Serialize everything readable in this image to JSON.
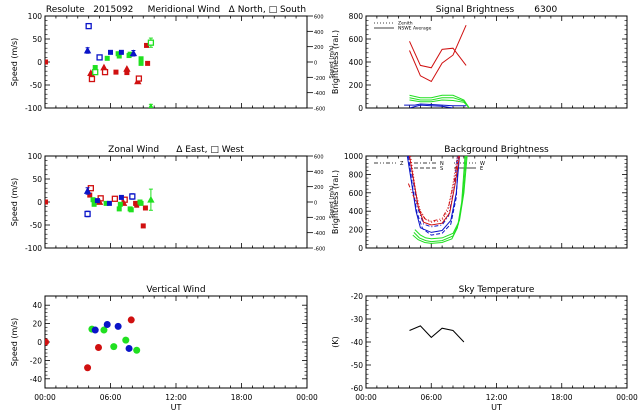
{
  "colors": {
    "red": "#d01010",
    "green": "#20e020",
    "blue": "#0a14c8",
    "axis": "#000000",
    "bg": "#ffffff"
  },
  "xaxis_common": {
    "label": "UT",
    "ticks": [
      "00:00",
      "06:00",
      "12:00",
      "18:00",
      "00:00"
    ],
    "range_hours": [
      0,
      24
    ]
  },
  "chart_data": [
    {
      "id": "meridional",
      "type": "scatter",
      "title": "Resolute   2015092     Meridional Wind   Δ North, □ South",
      "ylabel": "Speed (m/s)",
      "ylabel_right": "Speed (m/s)",
      "ylim": [
        -100,
        100
      ],
      "yticks": [
        -100,
        -50,
        0,
        50,
        100
      ],
      "ylim_right": [
        -600,
        600
      ],
      "yticks_right": [
        "600",
        "400",
        "200",
        "0",
        "-200",
        "-400",
        "-600"
      ],
      "show_xlabels": false,
      "series": [
        {
          "name": "red",
          "color": "red",
          "points": [
            {
              "t": 0.05,
              "v": 0,
              "m": "fill"
            },
            {
              "t": 4.2,
              "v": -24,
              "m": "tri"
            },
            {
              "t": 4.3,
              "v": -37,
              "m": "sq"
            },
            {
              "t": 5.4,
              "v": -12,
              "m": "tri"
            },
            {
              "t": 5.5,
              "v": -22,
              "m": "sq"
            },
            {
              "t": 6.5,
              "v": -22,
              "m": "fill"
            },
            {
              "t": 7.5,
              "v": -15,
              "m": "tri"
            },
            {
              "t": 7.5,
              "v": -23,
              "m": "fill"
            },
            {
              "t": 8.5,
              "v": -42,
              "m": "tri"
            },
            {
              "t": 8.6,
              "v": -36,
              "m": "sq"
            },
            {
              "t": 9.3,
              "v": 36,
              "m": "fill"
            },
            {
              "t": 9.4,
              "v": -3,
              "m": "fill"
            }
          ]
        },
        {
          "name": "green",
          "color": "green",
          "points": [
            {
              "t": 4.6,
              "v": -12,
              "m": "fill"
            },
            {
              "t": 4.6,
              "v": -22,
              "m": "sq"
            },
            {
              "t": 5.7,
              "v": 8,
              "m": "fill"
            },
            {
              "t": 6.7,
              "v": 18,
              "m": "fill"
            },
            {
              "t": 6.8,
              "v": 13,
              "m": "fill"
            },
            {
              "t": 7.8,
              "v": 17,
              "m": "fill"
            },
            {
              "t": 7.7,
              "v": 14,
              "m": "fill"
            },
            {
              "t": 8.8,
              "v": -3,
              "m": "fill"
            },
            {
              "t": 8.8,
              "v": 7,
              "m": "fill"
            },
            {
              "t": 9.7,
              "v": 42,
              "m": "sq",
              "err": 10
            },
            {
              "t": 9.7,
              "v": -98,
              "m": "tri",
              "err": 6
            }
          ]
        },
        {
          "name": "blue",
          "color": "blue",
          "points": [
            {
              "t": 4.0,
              "v": 78,
              "m": "sq"
            },
            {
              "t": 3.9,
              "v": 25,
              "m": "tri",
              "err": 6
            },
            {
              "t": 5.0,
              "v": 10,
              "m": "sq"
            },
            {
              "t": 6.0,
              "v": 21,
              "m": "fill"
            },
            {
              "t": 7.0,
              "v": 21,
              "m": "fill"
            },
            {
              "t": 8.1,
              "v": 19,
              "m": "tri",
              "err": 6
            }
          ]
        }
      ]
    },
    {
      "id": "signal",
      "type": "line",
      "title": "Signal Brightness       6300",
      "ylabel": "Brightness (ral.)",
      "ylim": [
        0,
        800
      ],
      "yticks": [
        0,
        200,
        400,
        600,
        800
      ],
      "show_xlabels": false,
      "legend": [
        {
          "label": "Zenith",
          "style": "dotted"
        },
        {
          "label": "NSWE Average",
          "style": "solid"
        }
      ],
      "series": [
        {
          "name": "red-a",
          "color": "red",
          "dash": "solid",
          "t": [
            4.0,
            5.0,
            6.0,
            7.0,
            8.0,
            9.2
          ],
          "v": [
            580,
            370,
            350,
            510,
            520,
            370
          ]
        },
        {
          "name": "red-b",
          "color": "red",
          "dash": "solid",
          "t": [
            4.0,
            5.0,
            6.0,
            7.0,
            8.0,
            9.2
          ],
          "v": [
            500,
            280,
            230,
            390,
            460,
            720
          ]
        },
        {
          "name": "green-a",
          "color": "green",
          "dash": "solid",
          "t": [
            4.0,
            5.0,
            6.0,
            7.0,
            8.0,
            9.0,
            9.5
          ],
          "v": [
            110,
            90,
            90,
            110,
            110,
            70,
            0
          ]
        },
        {
          "name": "green-b",
          "color": "green",
          "dash": "solid",
          "t": [
            4.0,
            5.0,
            6.0,
            7.0,
            8.0,
            9.0,
            9.5
          ],
          "v": [
            90,
            70,
            70,
            90,
            90,
            60,
            0
          ]
        },
        {
          "name": "green-c",
          "color": "green",
          "dash": "solid",
          "t": [
            4.0,
            5.0,
            6.0,
            7.0,
            8.0,
            9.0,
            9.5
          ],
          "v": [
            70,
            55,
            55,
            70,
            65,
            50,
            0
          ]
        },
        {
          "name": "blue-a",
          "color": "blue",
          "dash": "solid",
          "t": [
            3.5,
            4.5,
            5.0,
            6.0,
            7.0,
            8.0,
            9.2
          ],
          "v": [
            25,
            25,
            35,
            30,
            25,
            20,
            20
          ]
        },
        {
          "name": "blue-b",
          "color": "blue",
          "dash": "solid",
          "t": [
            4.0,
            5.0,
            6.0,
            7.0,
            8.0
          ],
          "v": [
            0,
            25,
            20,
            15,
            0
          ]
        }
      ]
    },
    {
      "id": "zonal",
      "type": "scatter",
      "title": "Zonal Wind      Δ East, □ West",
      "ylabel": "Speed (m/s)",
      "ylabel_right": "Speed (m/s)",
      "ylim": [
        -100,
        100
      ],
      "yticks": [
        -100,
        -50,
        0,
        50,
        100
      ],
      "ylim_right": [
        -600,
        600
      ],
      "yticks_right": [
        "600",
        "400",
        "200",
        "0",
        "-200",
        "-400",
        "-600"
      ],
      "show_xlabels": false,
      "series": [
        {
          "name": "red",
          "color": "red",
          "points": [
            {
              "t": 0.05,
              "v": 0,
              "m": "fill"
            },
            {
              "t": 4.2,
              "v": 30,
              "m": "sq"
            },
            {
              "t": 4.1,
              "v": 15,
              "m": "fill"
            },
            {
              "t": 5.1,
              "v": 8,
              "m": "sq"
            },
            {
              "t": 5.0,
              "v": 0,
              "m": "tri"
            },
            {
              "t": 6.4,
              "v": 7,
              "m": "sq"
            },
            {
              "t": 7.3,
              "v": 5,
              "m": "sq"
            },
            {
              "t": 7.2,
              "v": -2,
              "m": "tri"
            },
            {
              "t": 8.3,
              "v": -3,
              "m": "fill"
            },
            {
              "t": 8.4,
              "v": -7,
              "m": "fill"
            },
            {
              "t": 9.2,
              "v": -13,
              "m": "fill"
            },
            {
              "t": 9.0,
              "v": -52,
              "m": "fill"
            }
          ]
        },
        {
          "name": "green",
          "color": "green",
          "points": [
            {
              "t": 4.4,
              "v": 5,
              "m": "fill"
            },
            {
              "t": 4.5,
              "v": -5,
              "m": "fill"
            },
            {
              "t": 5.6,
              "v": -3,
              "m": "fill"
            },
            {
              "t": 6.8,
              "v": -15,
              "m": "fill"
            },
            {
              "t": 6.9,
              "v": -5,
              "m": "fill"
            },
            {
              "t": 7.8,
              "v": -15,
              "m": "fill"
            },
            {
              "t": 7.9,
              "v": -17,
              "m": "fill"
            },
            {
              "t": 8.7,
              "v": 0,
              "m": "fill"
            },
            {
              "t": 8.8,
              "v": -3,
              "m": "fill"
            },
            {
              "t": 9.7,
              "v": 5,
              "m": "tri",
              "err": 23
            }
          ]
        },
        {
          "name": "blue",
          "color": "blue",
          "points": [
            {
              "t": 3.9,
              "v": 24,
              "m": "tri",
              "err": 7
            },
            {
              "t": 3.9,
              "v": -26,
              "m": "sq",
              "err": 6
            },
            {
              "t": 4.8,
              "v": 3,
              "m": "fill"
            },
            {
              "t": 5.9,
              "v": -3,
              "m": "fill"
            },
            {
              "t": 7.0,
              "v": 10,
              "m": "fill"
            },
            {
              "t": 8.0,
              "v": 12,
              "m": "sq",
              "err": 6
            }
          ]
        }
      ]
    },
    {
      "id": "background",
      "type": "line",
      "title": "Background Brightness",
      "ylabel": "Brightness (ral.)",
      "ylim": [
        0,
        1000
      ],
      "yticks": [
        0,
        200,
        400,
        600,
        800,
        1000
      ],
      "show_xlabels": false,
      "legend": [
        {
          "label": "Z",
          "style": "dashdotdot"
        },
        {
          "label": "N",
          "style": "dashdot"
        },
        {
          "label": "S",
          "style": "dashed"
        },
        {
          "label": "W",
          "style": "dotted"
        },
        {
          "label": "E",
          "style": "solid"
        }
      ],
      "series": [
        {
          "name": "blue-1",
          "color": "blue",
          "dash": "solid",
          "t": [
            3.8,
            4.2,
            4.6,
            5.0,
            6.0,
            7.0,
            7.8,
            8.3,
            8.6
          ],
          "v": [
            1000,
            700,
            400,
            220,
            170,
            190,
            300,
            600,
            1000
          ]
        },
        {
          "name": "blue-2",
          "color": "blue",
          "dash": "dashed",
          "t": [
            3.9,
            4.3,
            4.7,
            5.2,
            6.0,
            7.0,
            7.8,
            8.3,
            8.5
          ],
          "v": [
            1000,
            650,
            380,
            210,
            140,
            160,
            260,
            550,
            1000
          ]
        },
        {
          "name": "blue-3",
          "color": "blue",
          "dash": "dashdot",
          "t": [
            4.0,
            4.4,
            4.8,
            5.3,
            6.0,
            7.0,
            7.6,
            8.1,
            8.4
          ],
          "v": [
            1000,
            680,
            420,
            260,
            230,
            250,
            350,
            650,
            1000
          ]
        },
        {
          "name": "red-1",
          "color": "red",
          "dash": "solid",
          "t": [
            4.0,
            4.4,
            4.8,
            5.3,
            6.0,
            7.0,
            7.7,
            8.2,
            8.6
          ],
          "v": [
            1000,
            720,
            450,
            280,
            250,
            270,
            380,
            700,
            1000
          ]
        },
        {
          "name": "red-2",
          "color": "red",
          "dash": "dashdotdot",
          "t": [
            3.9,
            4.3,
            4.9,
            5.4,
            6.0,
            7.0,
            7.6,
            8.1,
            8.5
          ],
          "v": [
            700,
            580,
            420,
            320,
            290,
            320,
            450,
            720,
            1000
          ]
        },
        {
          "name": "red-3",
          "color": "red",
          "dash": "dotted",
          "t": [
            4.1,
            4.6,
            5.0,
            5.5,
            6.0,
            7.0,
            7.5,
            8.0,
            8.4
          ],
          "v": [
            1000,
            600,
            400,
            310,
            280,
            300,
            400,
            700,
            1000
          ]
        },
        {
          "name": "green-1",
          "color": "green",
          "dash": "solid",
          "t": [
            4.5,
            5.0,
            5.5,
            6.0,
            7.0,
            8.0,
            8.6,
            9.0,
            9.3
          ],
          "v": [
            200,
            140,
            110,
            100,
            110,
            160,
            300,
            600,
            1000
          ]
        },
        {
          "name": "green-2",
          "color": "green",
          "dash": "solid",
          "t": [
            4.4,
            4.9,
            5.5,
            6.0,
            7.0,
            8.0,
            8.5,
            8.9,
            9.2
          ],
          "v": [
            170,
            110,
            80,
            70,
            80,
            130,
            260,
            550,
            1000
          ]
        },
        {
          "name": "green-3",
          "color": "green",
          "dash": "solid",
          "t": [
            4.3,
            4.8,
            5.4,
            6.0,
            7.0,
            7.9,
            8.4,
            8.8,
            9.1
          ],
          "v": [
            140,
            90,
            60,
            50,
            60,
            100,
            220,
            500,
            1000
          ]
        }
      ]
    },
    {
      "id": "vertical",
      "type": "scatter",
      "title": "Vertical Wind",
      "ylabel": "Speed (m/s)",
      "ylim": [
        -50,
        50
      ],
      "yticks": [
        -40,
        -20,
        0,
        20,
        40
      ],
      "show_xlabels": true,
      "series": [
        {
          "name": "red",
          "color": "red",
          "points": [
            {
              "t": 0.05,
              "v": 0,
              "m": "dot"
            },
            {
              "t": 3.9,
              "v": -28,
              "m": "dot"
            },
            {
              "t": 4.9,
              "v": -6,
              "m": "dot"
            },
            {
              "t": 7.9,
              "v": 24,
              "m": "dot"
            }
          ]
        },
        {
          "name": "green",
          "color": "green",
          "points": [
            {
              "t": 4.3,
              "v": 14,
              "m": "dot"
            },
            {
              "t": 5.4,
              "v": 13,
              "m": "dot"
            },
            {
              "t": 6.3,
              "v": -5,
              "m": "dot"
            },
            {
              "t": 7.4,
              "v": 2,
              "m": "dot"
            },
            {
              "t": 8.4,
              "v": -9,
              "m": "dot"
            }
          ]
        },
        {
          "name": "blue",
          "color": "blue",
          "points": [
            {
              "t": 4.6,
              "v": 13,
              "m": "dot"
            },
            {
              "t": 5.7,
              "v": 19,
              "m": "dot"
            },
            {
              "t": 6.7,
              "v": 17,
              "m": "dot"
            },
            {
              "t": 7.7,
              "v": -7,
              "m": "dot"
            }
          ]
        }
      ]
    },
    {
      "id": "skytemp",
      "type": "line",
      "title": "Sky Temperature",
      "ylabel": "(K)",
      "ylim": [
        -60,
        -20
      ],
      "yticks": [
        -60,
        -50,
        -40,
        -30,
        -20
      ],
      "show_xlabels": true,
      "series": [
        {
          "name": "sky-temp",
          "color": "axis",
          "dash": "solid",
          "t": [
            4.0,
            5.0,
            6.0,
            7.0,
            8.0,
            9.0
          ],
          "v": [
            -35,
            -33,
            -38,
            -34,
            -35,
            -40
          ]
        }
      ]
    }
  ]
}
